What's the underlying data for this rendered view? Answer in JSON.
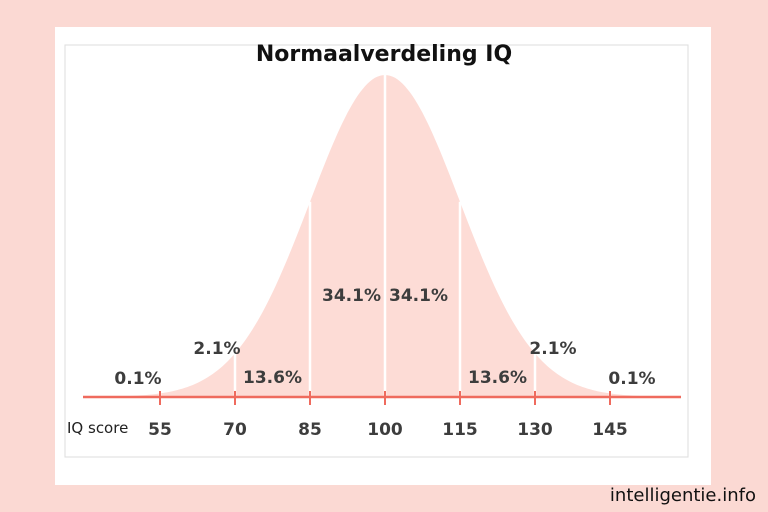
{
  "chart_data": {
    "type": "area",
    "title": "Normaalverdeling IQ",
    "xlabel": "IQ score",
    "mean": 100,
    "sd": 15,
    "xlim": [
      45,
      154
    ],
    "ticks": [
      55,
      70,
      85,
      100,
      115,
      130,
      145
    ],
    "regions": [
      {
        "from": 40,
        "to": 55,
        "label": "0.1%"
      },
      {
        "from": 55,
        "to": 70,
        "label": "2.1%"
      },
      {
        "from": 70,
        "to": 85,
        "label": "13.6%"
      },
      {
        "from": 85,
        "to": 100,
        "label": "34.1%"
      },
      {
        "from": 100,
        "to": 115,
        "label": "34.1%"
      },
      {
        "from": 115,
        "to": 130,
        "label": "13.6%"
      },
      {
        "from": 130,
        "to": 145,
        "label": "2.1%"
      },
      {
        "from": 145,
        "to": 160,
        "label": "0.1%"
      }
    ],
    "colors": {
      "fill": "#fddcd6",
      "axis": "#ef6b5e",
      "divider": "#ffffff",
      "background": "#fbd9d3"
    }
  },
  "watermark": "intelligentie.info"
}
